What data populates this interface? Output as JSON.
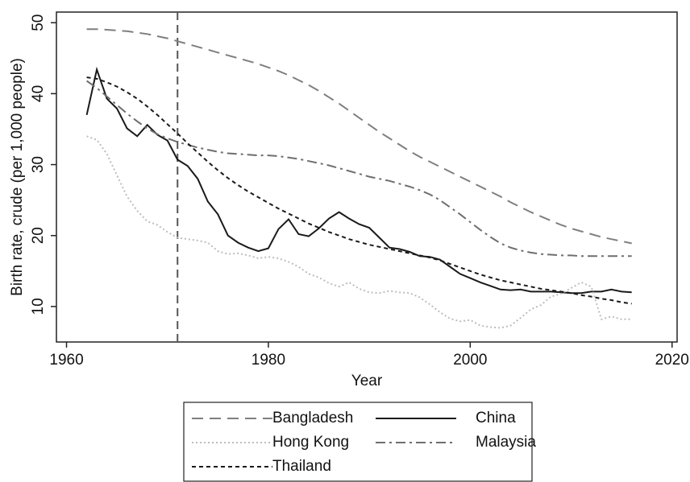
{
  "chart_data": {
    "type": "line",
    "x_label": "Year",
    "y_label": "Birth rate, crude (per 1,000 people)",
    "x": [
      1962,
      1963,
      1964,
      1965,
      1966,
      1967,
      1968,
      1969,
      1970,
      1971,
      1972,
      1973,
      1974,
      1975,
      1976,
      1977,
      1978,
      1979,
      1980,
      1981,
      1982,
      1983,
      1984,
      1985,
      1986,
      1987,
      1988,
      1989,
      1990,
      1991,
      1992,
      1993,
      1994,
      1995,
      1996,
      1997,
      1998,
      1999,
      2000,
      2001,
      2002,
      2003,
      2004,
      2005,
      2006,
      2007,
      2008,
      2009,
      2010,
      2011,
      2012,
      2013,
      2014,
      2015,
      2016
    ],
    "xlim": [
      1959,
      2020.5
    ],
    "xticks": [
      1960,
      1980,
      2000,
      2020
    ],
    "ylim": [
      5,
      51.5
    ],
    "yticks": [
      10,
      20,
      30,
      40,
      50
    ],
    "vline": 1971,
    "series": [
      {
        "name": "Bangladesh",
        "color": "#7f7f7f",
        "dash": "14,8",
        "width": 2,
        "values": [
          49.1,
          49.1,
          49.0,
          48.9,
          48.8,
          48.6,
          48.4,
          48.1,
          47.8,
          47.4,
          47.0,
          46.6,
          46.2,
          45.8,
          45.4,
          45.0,
          44.6,
          44.2,
          43.7,
          43.2,
          42.6,
          41.9,
          41.2,
          40.4,
          39.5,
          38.6,
          37.6,
          36.6,
          35.6,
          34.6,
          33.7,
          32.8,
          31.9,
          31.1,
          30.4,
          29.7,
          29.0,
          28.3,
          27.6,
          26.9,
          26.2,
          25.5,
          24.7,
          24.0,
          23.3,
          22.7,
          22.1,
          21.5,
          21.0,
          20.6,
          20.2,
          19.8,
          19.5,
          19.2,
          18.9
        ]
      },
      {
        "name": "China",
        "color": "#1a1a1a",
        "dash": "none",
        "width": 2,
        "values": [
          37,
          43.4,
          39.3,
          37.9,
          35.1,
          34,
          35.6,
          34.2,
          33.4,
          30.7,
          29.8,
          28,
          24.8,
          23,
          20,
          19,
          18.3,
          17.8,
          18.2,
          20.9,
          22.3,
          20.2,
          19.9,
          21,
          22.4,
          23.3,
          22.4,
          21.6,
          21.1,
          19.7,
          18.3,
          18.1,
          17.7,
          17.1,
          17,
          16.6,
          15.6,
          14.6,
          14,
          13.4,
          12.9,
          12.4,
          12.3,
          12.4,
          12.1,
          12.1,
          12.1,
          12.0,
          11.9,
          11.9,
          12.1,
          12.1,
          12.4,
          12.1,
          12.0
        ]
      },
      {
        "name": "Hong Kong",
        "color": "#bdbdbd",
        "dash": "2,3",
        "width": 2,
        "values": [
          34.0,
          33.5,
          31.5,
          28.5,
          25.5,
          23.5,
          22.0,
          21.5,
          20.5,
          19.7,
          19.5,
          19.3,
          19.0,
          17.8,
          17.4,
          17.5,
          17.2,
          16.8,
          17.0,
          16.8,
          16.3,
          15.6,
          14.6,
          14.1,
          13.3,
          12.8,
          13.4,
          12.5,
          12.0,
          11.9,
          12.2,
          12.0,
          11.9,
          11.3,
          10.3,
          9.2,
          8.3,
          7.9,
          8.1,
          7.3,
          7.1,
          7.0,
          7.3,
          8.4,
          9.6,
          10.2,
          11.4,
          11.8,
          12.6,
          13.4,
          12.8,
          8.2,
          8.6,
          8.2,
          8.2
        ]
      },
      {
        "name": "Malaysia",
        "color": "#6e6e6e",
        "dash": "12,5,3,5",
        "width": 2,
        "values": [
          41.8,
          40.8,
          39.6,
          38.4,
          37.2,
          36.1,
          35.1,
          34.3,
          33.7,
          33.2,
          32.8,
          32.4,
          32.1,
          31.8,
          31.6,
          31.5,
          31.4,
          31.3,
          31.3,
          31.2,
          31.0,
          30.8,
          30.5,
          30.2,
          29.9,
          29.5,
          29.1,
          28.7,
          28.3,
          28.0,
          27.7,
          27.3,
          26.9,
          26.4,
          25.8,
          25.0,
          24.0,
          23.0,
          21.9,
          20.8,
          19.8,
          18.9,
          18.3,
          17.9,
          17.6,
          17.4,
          17.3,
          17.2,
          17.2,
          17.1,
          17.1,
          17.1,
          17.1,
          17.1,
          17.1
        ]
      },
      {
        "name": "Thailand",
        "color": "#1a1a1a",
        "dash": "5,4",
        "width": 2,
        "values": [
          42.3,
          42.1,
          41.6,
          41.0,
          40.2,
          39.3,
          38.2,
          37.0,
          35.7,
          34.4,
          33.0,
          31.7,
          30.4,
          29.2,
          28.1,
          27.1,
          26.2,
          25.4,
          24.6,
          23.8,
          23.1,
          22.4,
          21.7,
          21.1,
          20.5,
          20.0,
          19.5,
          19.1,
          18.7,
          18.4,
          18.1,
          17.8,
          17.5,
          17.2,
          16.9,
          16.5,
          16.0,
          15.5,
          15.0,
          14.5,
          14.1,
          13.7,
          13.4,
          13.1,
          12.8,
          12.5,
          12.3,
          12.1,
          11.9,
          11.6,
          11.4,
          11.1,
          10.9,
          10.6,
          10.4
        ]
      }
    ]
  }
}
